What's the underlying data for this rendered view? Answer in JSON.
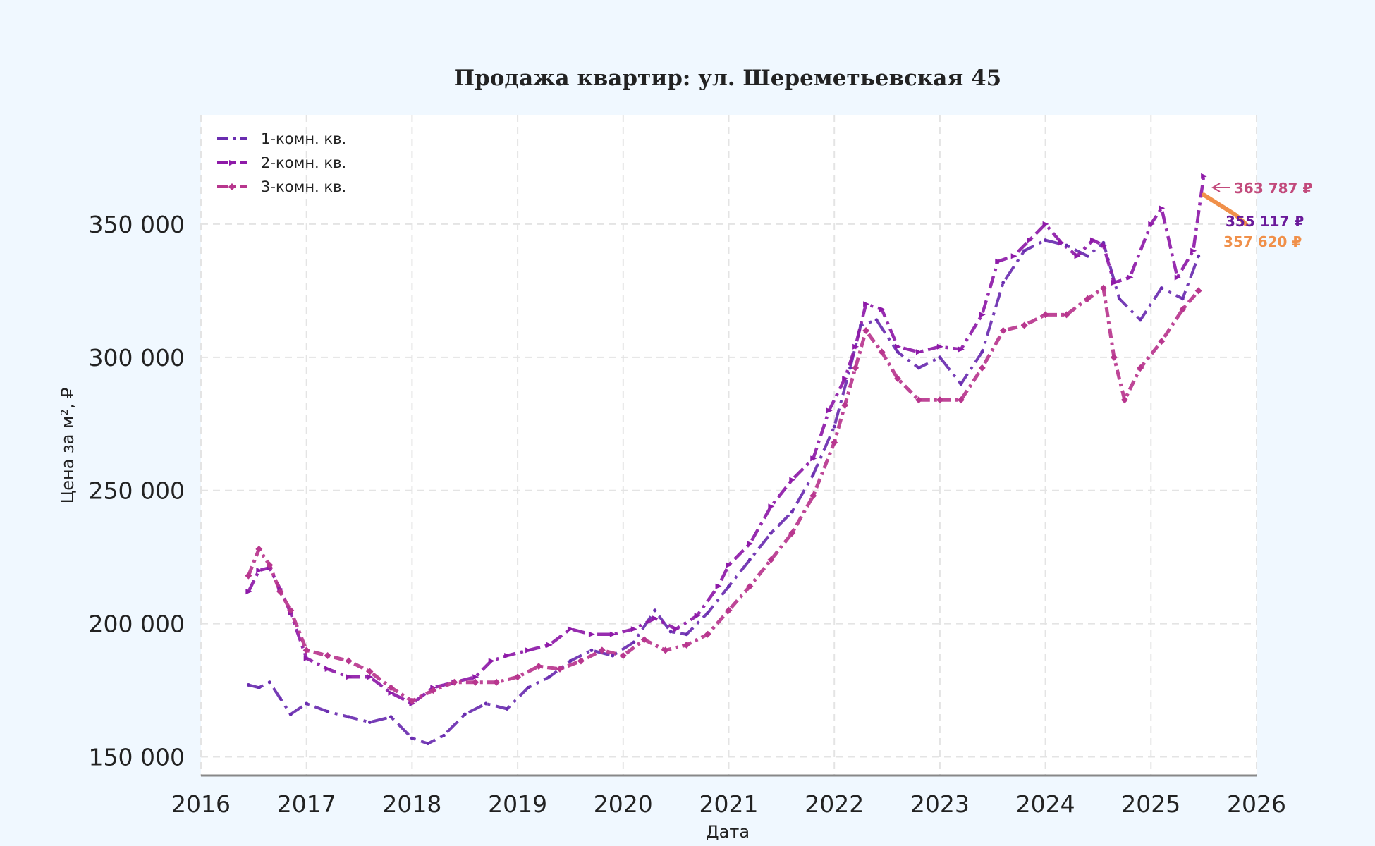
{
  "chart_data": {
    "type": "line",
    "title": "Продажа квартир: ул. Шереметьевская 45",
    "xlabel": "Дата",
    "ylabel": "Цена за м², ₽",
    "xlim": [
      2016.0,
      2026.0
    ],
    "ylim": [
      143000,
      391000
    ],
    "x_ticks": [
      2016,
      2017,
      2018,
      2019,
      2020,
      2021,
      2022,
      2023,
      2024,
      2025,
      2026
    ],
    "x_tick_labels": [
      "2016",
      "2017",
      "2018",
      "2019",
      "2020",
      "2021",
      "2022",
      "2023",
      "2024",
      "2025",
      "2026"
    ],
    "y_ticks": [
      150000,
      200000,
      250000,
      300000,
      350000
    ],
    "y_tick_labels": [
      "150 000",
      "200 000",
      "250 000",
      "300 000",
      "350 000"
    ],
    "grid": true,
    "legend_position": "top-left",
    "series": [
      {
        "name": "1-комн. кв.",
        "color": "#6a2db0",
        "x": [
          2016.45,
          2016.55,
          2016.65,
          2016.75,
          2016.85,
          2017.0,
          2017.2,
          2017.4,
          2017.6,
          2017.8,
          2018.0,
          2018.15,
          2018.3,
          2018.5,
          2018.7,
          2018.9,
          2019.1,
          2019.3,
          2019.5,
          2019.7,
          2019.9,
          2020.1,
          2020.3,
          2020.45,
          2020.6,
          2020.8,
          2021.0,
          2021.2,
          2021.4,
          2021.6,
          2021.8,
          2022.0,
          2022.15,
          2022.25,
          2022.4,
          2022.6,
          2022.8,
          2023.0,
          2023.2,
          2023.4,
          2023.6,
          2023.8,
          2024.0,
          2024.2,
          2024.4,
          2024.55,
          2024.7,
          2024.9,
          2025.1,
          2025.3,
          2025.45
        ],
        "values": [
          177000,
          176000,
          178000,
          172000,
          166000,
          170000,
          167000,
          165000,
          163000,
          165000,
          157000,
          155000,
          158000,
          166000,
          170000,
          168000,
          176000,
          180000,
          186000,
          190000,
          188000,
          193000,
          205000,
          197000,
          196000,
          204000,
          214000,
          224000,
          234000,
          242000,
          256000,
          274000,
          296000,
          312000,
          314000,
          302000,
          296000,
          300000,
          290000,
          302000,
          328000,
          340000,
          344000,
          342000,
          338000,
          343000,
          322000,
          314000,
          326000,
          322000,
          338000
        ]
      },
      {
        "name": "2-комн. кв.",
        "color": "#8e1aa8",
        "x": [
          2016.45,
          2016.55,
          2016.65,
          2016.75,
          2016.85,
          2017.0,
          2017.2,
          2017.4,
          2017.6,
          2017.8,
          2018.0,
          2018.2,
          2018.4,
          2018.6,
          2018.75,
          2018.9,
          2019.1,
          2019.3,
          2019.5,
          2019.7,
          2019.9,
          2020.1,
          2020.3,
          2020.5,
          2020.7,
          2020.9,
          2021.0,
          2021.2,
          2021.4,
          2021.6,
          2021.8,
          2021.95,
          2022.1,
          2022.2,
          2022.3,
          2022.45,
          2022.6,
          2022.8,
          2023.0,
          2023.2,
          2023.4,
          2023.55,
          2023.7,
          2023.85,
          2024.0,
          2024.15,
          2024.3,
          2024.45,
          2024.55,
          2024.65,
          2024.8,
          2025.0,
          2025.1,
          2025.25,
          2025.4,
          2025.5
        ],
        "values": [
          212000,
          220000,
          221000,
          213000,
          204000,
          187000,
          183000,
          180000,
          180000,
          174000,
          170000,
          176000,
          178000,
          180000,
          186000,
          188000,
          190000,
          192000,
          198000,
          196000,
          196000,
          198000,
          202000,
          198000,
          203000,
          214000,
          222000,
          230000,
          244000,
          254000,
          262000,
          280000,
          292000,
          304000,
          320000,
          318000,
          304000,
          302000,
          304000,
          303000,
          316000,
          336000,
          338000,
          344000,
          350000,
          343000,
          338000,
          344000,
          342000,
          328000,
          330000,
          350000,
          356000,
          330000,
          340000,
          368000
        ]
      },
      {
        "name": "3-комн. кв.",
        "color": "#b8368e",
        "x": [
          2016.45,
          2016.55,
          2016.65,
          2016.75,
          2016.85,
          2017.0,
          2017.2,
          2017.4,
          2017.6,
          2017.8,
          2018.0,
          2018.2,
          2018.4,
          2018.6,
          2018.8,
          2019.0,
          2019.2,
          2019.4,
          2019.6,
          2019.8,
          2020.0,
          2020.2,
          2020.4,
          2020.6,
          2020.8,
          2021.0,
          2021.2,
          2021.4,
          2021.6,
          2021.8,
          2022.0,
          2022.1,
          2022.2,
          2022.3,
          2022.45,
          2022.6,
          2022.8,
          2023.0,
          2023.2,
          2023.4,
          2023.6,
          2023.8,
          2024.0,
          2024.2,
          2024.4,
          2024.55,
          2024.65,
          2024.75,
          2024.9,
          2025.1,
          2025.3,
          2025.45
        ],
        "values": [
          218000,
          228000,
          222000,
          212000,
          205000,
          190000,
          188000,
          186000,
          182000,
          176000,
          171000,
          175000,
          178000,
          178000,
          178000,
          180000,
          184000,
          183000,
          186000,
          190000,
          188000,
          194000,
          190000,
          192000,
          196000,
          205000,
          214000,
          224000,
          234000,
          248000,
          268000,
          282000,
          296000,
          310000,
          302000,
          292000,
          284000,
          284000,
          284000,
          296000,
          310000,
          312000,
          316000,
          316000,
          322000,
          326000,
          300000,
          284000,
          296000,
          306000,
          318000,
          325000
        ]
      }
    ],
    "forecast": {
      "color": "#f0904a",
      "x": [
        2025.5,
        2025.6,
        2025.7,
        2025.8,
        2025.9
      ],
      "values": [
        361000,
        358500,
        356000,
        353500,
        350000
      ]
    },
    "end_labels": [
      {
        "text": "363 787 ₽",
        "color": "#c24a7c",
        "value": 363787
      },
      {
        "text": "355 117 ₽",
        "color": "#6a1a9a",
        "value": 355117
      },
      {
        "text": "357 620 ₽",
        "color": "#f0904a",
        "value": 357620
      }
    ]
  }
}
